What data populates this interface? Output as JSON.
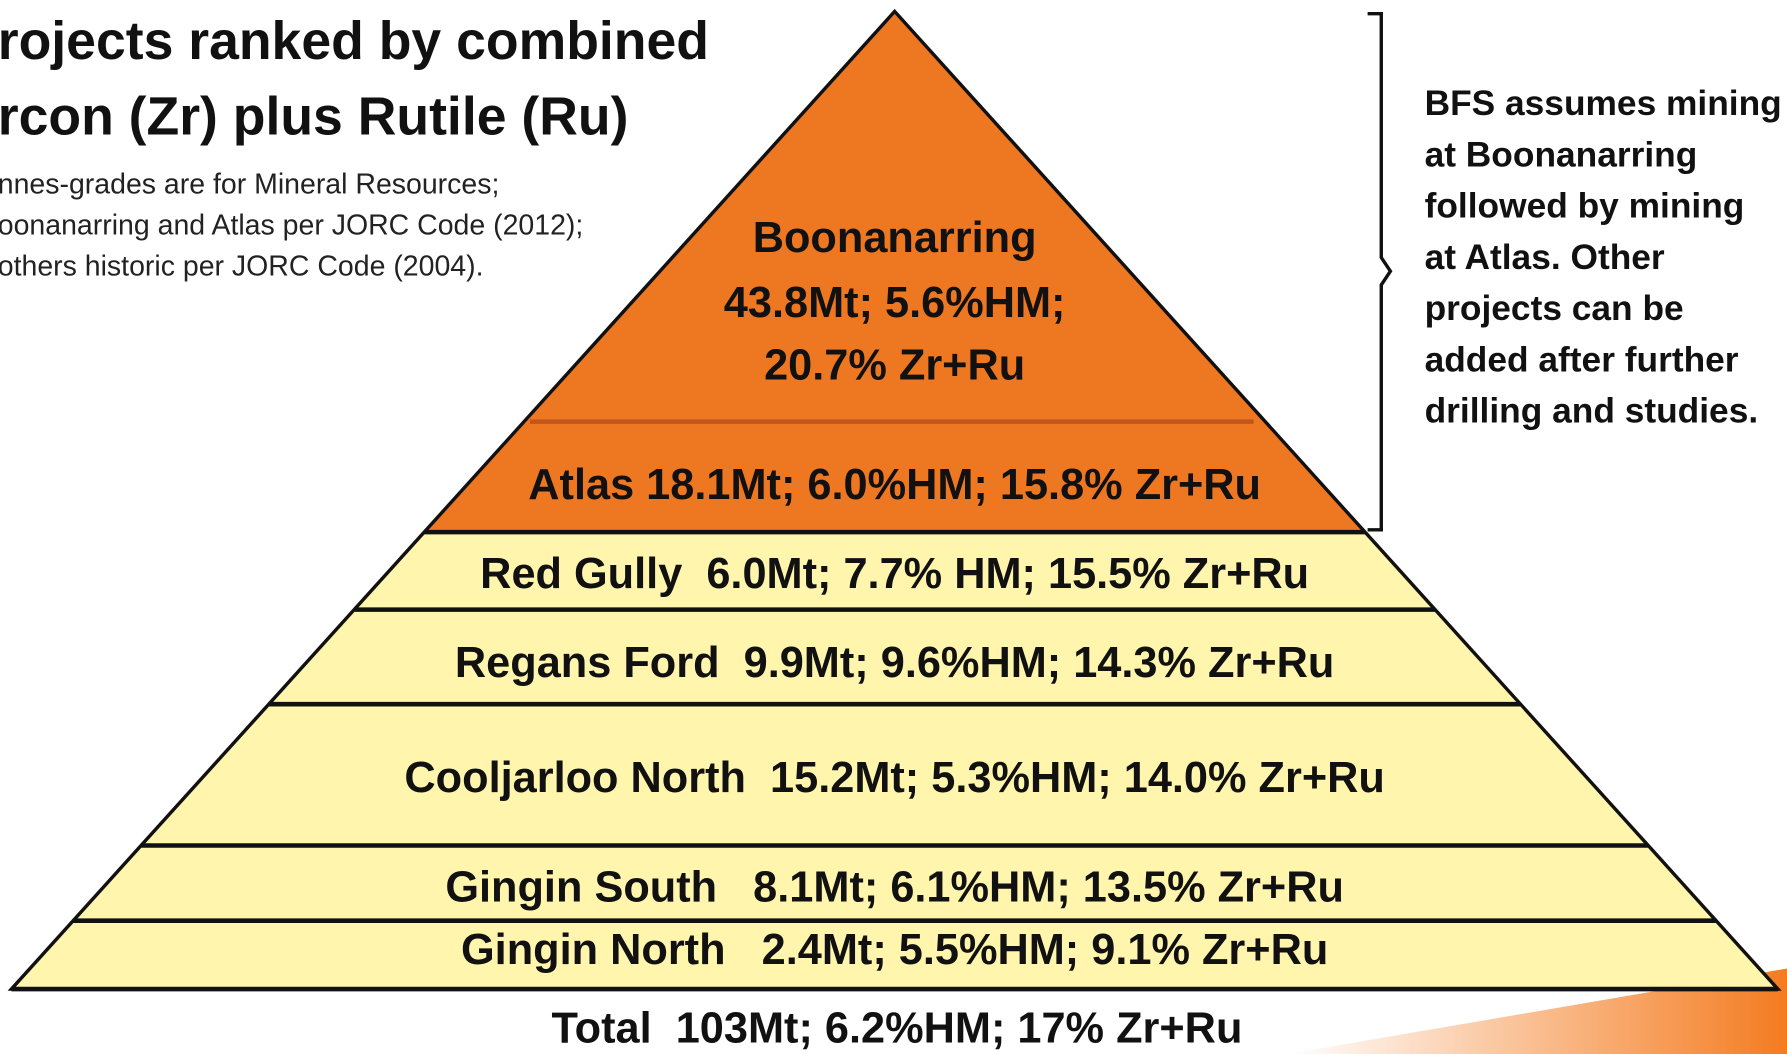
{
  "title": [
    "rojects ranked by combined",
    "rcon (Zr) plus Rutile (Ru)"
  ],
  "subtitle": [
    "nnes-grades are for Mineral Resources;",
    "oonanarring and Atlas per JORC Code (2012);",
    "others historic per JORC Code (2004)."
  ],
  "pyramid": {
    "top": [
      "Boonanarring",
      "43.8Mt; 5.6%HM;",
      "20.7% Zr+Ru"
    ],
    "layers": [
      "Atlas 18.1Mt; 6.0%HM; 15.8% Zr+Ru",
      "Red Gully  6.0Mt; 7.7% HM; 15.5% Zr+Ru",
      "Regans Ford  9.9Mt; 9.6%HM; 14.3% Zr+Ru",
      "Cooljarloo North  15.2Mt; 5.3%HM; 14.0% Zr+Ru",
      "Gingin South   8.1Mt; 6.1%HM; 13.5% Zr+Ru",
      "Gingin North   2.4Mt; 5.5%HM; 9.1% Zr+Ru"
    ],
    "total": "Total  103Mt; 6.2%HM; 17% Zr+Ru"
  },
  "note": [
    "BFS assumes mining",
    "at Boonanarring",
    "followed by mining",
    "at Atlas. Other",
    "projects can be",
    "added after further",
    "drilling and studies."
  ]
}
